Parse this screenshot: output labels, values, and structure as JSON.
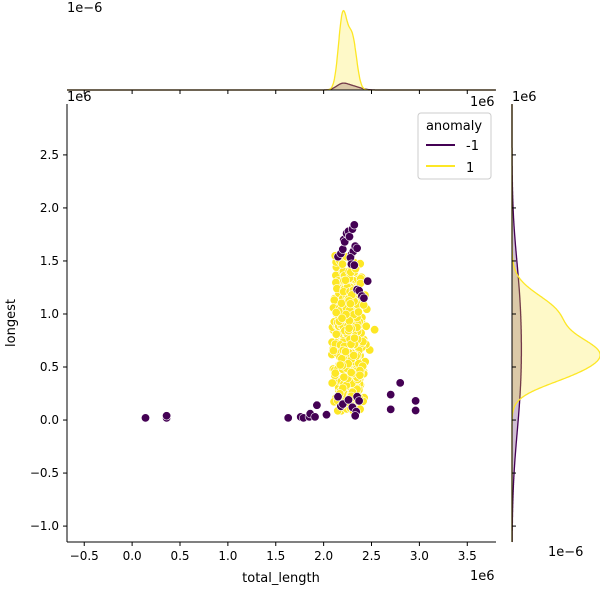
{
  "chart_data": {
    "type": "scatter",
    "title": "",
    "xlabel": "total_length",
    "ylabel": "longest",
    "x_scale_label": "1e6",
    "y_scale_label": "1e6",
    "xlim": [
      -0.68,
      3.8
    ],
    "ylim": [
      -1.15,
      2.98
    ],
    "xticks": [
      -0.5,
      0.0,
      0.5,
      1.0,
      1.5,
      2.0,
      2.5,
      3.0,
      3.5
    ],
    "xtick_labels": [
      "−0.5",
      "0.0",
      "0.5",
      "1.0",
      "1.5",
      "2.0",
      "2.5",
      "3.0",
      "3.5"
    ],
    "yticks": [
      -1.0,
      -0.5,
      0.0,
      0.5,
      1.0,
      1.5,
      2.0,
      2.5
    ],
    "ytick_labels": [
      "−1.0",
      "−0.5",
      "0.0",
      "0.5",
      "1.0",
      "1.5",
      "2.0",
      "2.5"
    ],
    "legend": {
      "title": "anomaly",
      "placement": "top-right",
      "entries": [
        {
          "label": "-1",
          "color": "#440154"
        },
        {
          "label": "1",
          "color": "#fde725"
        }
      ]
    },
    "series": [
      {
        "name": "-1",
        "color": "#440154",
        "points": [
          [
            0.14,
            0.02
          ],
          [
            0.36,
            0.02
          ],
          [
            0.36,
            0.04
          ],
          [
            1.63,
            0.02
          ],
          [
            1.76,
            0.03
          ],
          [
            1.79,
            0.02
          ],
          [
            1.85,
            0.03
          ],
          [
            1.86,
            0.06
          ],
          [
            1.91,
            0.03
          ],
          [
            1.93,
            0.14
          ],
          [
            2.03,
            0.05
          ],
          [
            2.15,
            1.54
          ],
          [
            2.18,
            1.57
          ],
          [
            2.2,
            1.61
          ],
          [
            2.21,
            1.7
          ],
          [
            2.22,
            1.68
          ],
          [
            2.24,
            1.76
          ],
          [
            2.26,
            1.78
          ],
          [
            2.27,
            1.73
          ],
          [
            2.3,
            1.8
          ],
          [
            2.32,
            1.84
          ],
          [
            2.29,
            1.56
          ],
          [
            2.31,
            1.59
          ],
          [
            2.33,
            1.64
          ],
          [
            2.35,
            1.62
          ],
          [
            2.28,
            1.53
          ],
          [
            2.29,
            1.47
          ],
          [
            2.32,
            1.46
          ],
          [
            2.35,
            1.23
          ],
          [
            2.37,
            1.22
          ],
          [
            2.4,
            1.17
          ],
          [
            2.42,
            1.15
          ],
          [
            2.46,
            1.31
          ],
          [
            2.15,
            0.22
          ],
          [
            2.18,
            0.13
          ],
          [
            2.2,
            0.15
          ],
          [
            2.26,
            0.19
          ],
          [
            2.3,
            0.12
          ],
          [
            2.34,
            0.08
          ],
          [
            2.35,
            0.22
          ],
          [
            2.37,
            0.18
          ],
          [
            2.33,
            0.04
          ],
          [
            2.7,
            0.24
          ],
          [
            2.7,
            0.1
          ],
          [
            2.8,
            0.35
          ],
          [
            2.96,
            0.09
          ],
          [
            2.96,
            0.18
          ]
        ]
      },
      {
        "name": "1",
        "color": "#fde725",
        "center_x": 2.26,
        "center_y": 0.72,
        "spread_x": 0.07,
        "spread_y": 0.34,
        "count": 900,
        "seed": 7
      }
    ],
    "marginal_x": {
      "scale_label": "1e−6",
      "series": [
        {
          "name": "-1",
          "color": "#440154",
          "peaks": [
            {
              "x": 2.19,
              "height": 0.07,
              "width": 0.06
            },
            {
              "x": 2.3,
              "height": 0.05,
              "width": 0.08
            }
          ]
        },
        {
          "name": "1",
          "color": "#fde725",
          "peaks": [
            {
              "x": 2.2,
              "height": 1.0,
              "width": 0.045
            },
            {
              "x": 2.3,
              "height": 0.68,
              "width": 0.045
            }
          ]
        }
      ]
    },
    "marginal_y": {
      "scale_label": "1e−6",
      "series": [
        {
          "name": "-1",
          "color": "#440154",
          "peaks": [
            {
              "y": 0.4,
              "height": 0.1,
              "width": 0.55
            },
            {
              "y": 1.2,
              "height": 0.06,
              "width": 0.45
            }
          ]
        },
        {
          "name": "1",
          "color": "#fde725",
          "peaks": [
            {
              "y": 1.0,
              "height": 0.55,
              "width": 0.18
            },
            {
              "y": 0.62,
              "height": 1.0,
              "width": 0.16
            },
            {
              "y": 0.4,
              "height": 0.3,
              "width": 0.12
            }
          ]
        }
      ]
    }
  }
}
